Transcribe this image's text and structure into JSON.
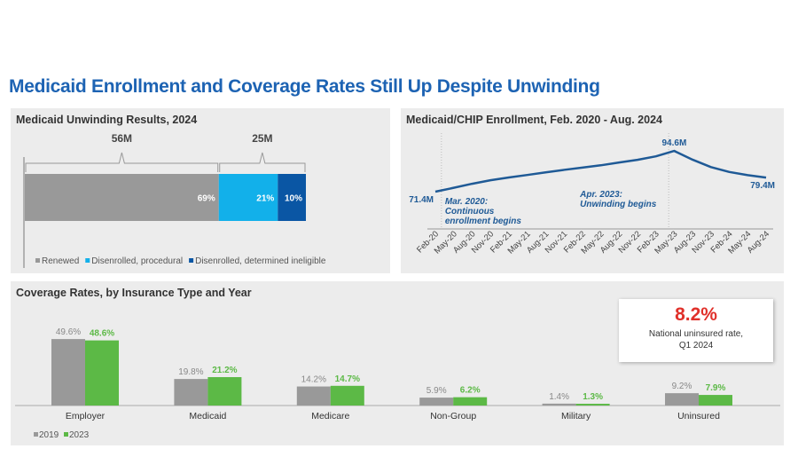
{
  "title": "Medicaid Enrollment and Coverage Rates Still Up Despite Unwinding",
  "colors": {
    "gray": "#999999",
    "light_blue": "#12b0ea",
    "dark_blue": "#0a56a4",
    "green": "#5cb946",
    "line": "#1f5a96",
    "title": "#1d63b3",
    "red": "#e0302a"
  },
  "chart_data": [
    {
      "type": "bar",
      "orientation": "horizontal-stacked",
      "title": "Medicaid Unwinding Results, 2024",
      "series": [
        {
          "name": "Renewed",
          "value": 69,
          "label": "69%"
        },
        {
          "name": "Disenrolled, procedural",
          "value": 21,
          "label": "21%"
        },
        {
          "name": "Disenrolled, determined ineligible",
          "value": 10,
          "label": "10%"
        }
      ],
      "brackets": [
        {
          "label": "56M",
          "covers": [
            0
          ]
        },
        {
          "label": "25M",
          "covers": [
            1,
            2
          ]
        }
      ],
      "legend": "bottom"
    },
    {
      "type": "line",
      "title": "Medicaid/CHIP Enrollment, Feb. 2020 - Aug. 2024",
      "x": [
        "Feb-20",
        "May-20",
        "Aug-20",
        "Nov-20",
        "Feb-21",
        "May-21",
        "Aug-21",
        "Nov-21",
        "Feb-22",
        "May-22",
        "Aug-22",
        "Nov-22",
        "Feb-23",
        "May-23",
        "Aug-23",
        "Nov-23",
        "Feb-24",
        "May-24",
        "Aug-24"
      ],
      "y": [
        71.4,
        73.6,
        75.9,
        77.9,
        79.5,
        80.9,
        82.4,
        83.8,
        85.1,
        86.4,
        88.0,
        89.5,
        91.5,
        94.6,
        89.6,
        85.4,
        82.6,
        80.8,
        79.4
      ],
      "unit": "M",
      "point_labels": [
        {
          "index": 0,
          "label": "71.4M"
        },
        {
          "index": 13,
          "label": "94.6M"
        },
        {
          "index": 18,
          "label": "79.4M"
        }
      ],
      "annotations": [
        {
          "at": "Mar-20",
          "lines": [
            "Mar. 2020:",
            "Continuous",
            "enrollment begins"
          ]
        },
        {
          "at": "Apr-23",
          "lines": [
            "Apr. 2023:",
            "Unwinding begins"
          ]
        }
      ],
      "ylim": [
        65,
        100
      ],
      "grid": false
    },
    {
      "type": "bar",
      "title": "Coverage Rates, by Insurance Type and Year",
      "categories": [
        "Employer",
        "Medicaid",
        "Medicare",
        "Non-Group",
        "Military",
        "Uninsured"
      ],
      "series": [
        {
          "name": "2019",
          "values": [
            49.6,
            19.8,
            14.2,
            5.9,
            1.4,
            9.2
          ],
          "labels": [
            "49.6%",
            "19.8%",
            "14.2%",
            "5.9%",
            "1.4%",
            "9.2%"
          ]
        },
        {
          "name": "2023",
          "values": [
            48.6,
            21.2,
            14.7,
            6.2,
            1.3,
            7.9
          ],
          "labels": [
            "48.6%",
            "21.2%",
            "14.7%",
            "6.2%",
            "1.3%",
            "7.9%"
          ]
        }
      ],
      "legend": "bottom-left",
      "callout": {
        "value": "8.2%",
        "line1": "National uninsured rate,",
        "line2": "Q1 2024"
      }
    }
  ]
}
